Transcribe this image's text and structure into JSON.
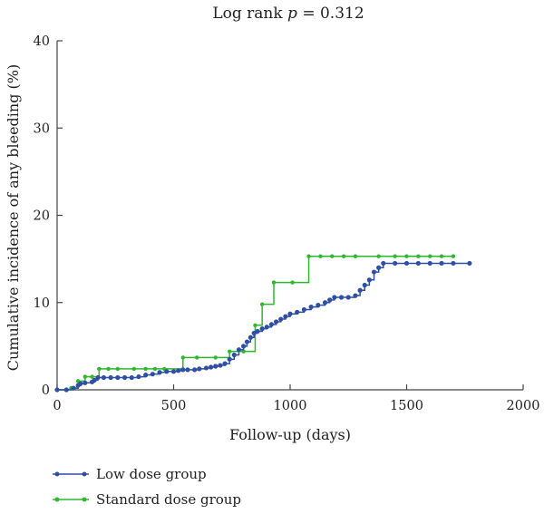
{
  "chart_data": {
    "type": "line",
    "title": "Log rank p = 0.312",
    "title_parts": {
      "prefix": "Log rank ",
      "p": "p",
      "suffix": " = 0.312"
    },
    "xlabel": "Follow-up (days)",
    "ylabel": "Cumulative incidence of any bleeding (%)",
    "xlim": [
      0,
      2000
    ],
    "ylim": [
      0,
      40
    ],
    "xticks": [
      0,
      500,
      1000,
      1500,
      2000
    ],
    "yticks": [
      0,
      10,
      20,
      30,
      40
    ],
    "xtick_labels": [
      "0",
      "500",
      "1000",
      "1500",
      "2000"
    ],
    "ytick_labels": [
      "0",
      "10",
      "20",
      "30",
      "40"
    ],
    "grid": false,
    "legend_position": "bottom-left",
    "series": [
      {
        "name": "Low dose group",
        "color": "#2e4fa3",
        "step": true,
        "points": [
          [
            0,
            0
          ],
          [
            40,
            0
          ],
          [
            70,
            0.2
          ],
          [
            90,
            0.5
          ],
          [
            100,
            0.7
          ],
          [
            120,
            0.8
          ],
          [
            150,
            0.9
          ],
          [
            160,
            1.1
          ],
          [
            175,
            1.4
          ],
          [
            200,
            1.4
          ],
          [
            230,
            1.4
          ],
          [
            260,
            1.4
          ],
          [
            290,
            1.4
          ],
          [
            320,
            1.4
          ],
          [
            350,
            1.5
          ],
          [
            380,
            1.7
          ],
          [
            410,
            1.8
          ],
          [
            440,
            2.0
          ],
          [
            470,
            2.1
          ],
          [
            500,
            2.1
          ],
          [
            520,
            2.2
          ],
          [
            540,
            2.3
          ],
          [
            560,
            2.3
          ],
          [
            590,
            2.3
          ],
          [
            610,
            2.4
          ],
          [
            640,
            2.5
          ],
          [
            660,
            2.6
          ],
          [
            680,
            2.7
          ],
          [
            700,
            2.8
          ],
          [
            720,
            3.0
          ],
          [
            740,
            3.5
          ],
          [
            760,
            4.0
          ],
          [
            780,
            4.6
          ],
          [
            800,
            5.0
          ],
          [
            815,
            5.5
          ],
          [
            830,
            6.0
          ],
          [
            845,
            6.5
          ],
          [
            860,
            6.7
          ],
          [
            880,
            7.0
          ],
          [
            900,
            7.2
          ],
          [
            920,
            7.5
          ],
          [
            940,
            7.8
          ],
          [
            960,
            8.1
          ],
          [
            980,
            8.4
          ],
          [
            1000,
            8.7
          ],
          [
            1030,
            8.9
          ],
          [
            1060,
            9.2
          ],
          [
            1090,
            9.5
          ],
          [
            1120,
            9.7
          ],
          [
            1150,
            10.0
          ],
          [
            1170,
            10.3
          ],
          [
            1190,
            10.6
          ],
          [
            1220,
            10.6
          ],
          [
            1250,
            10.6
          ],
          [
            1280,
            10.8
          ],
          [
            1300,
            11.4
          ],
          [
            1320,
            12.0
          ],
          [
            1340,
            12.6
          ],
          [
            1360,
            13.5
          ],
          [
            1380,
            14.0
          ],
          [
            1400,
            14.5
          ],
          [
            1450,
            14.5
          ],
          [
            1500,
            14.5
          ],
          [
            1550,
            14.5
          ],
          [
            1600,
            14.5
          ],
          [
            1650,
            14.5
          ],
          [
            1700,
            14.5
          ],
          [
            1770,
            14.5
          ]
        ]
      },
      {
        "name": "Standard dose group",
        "color": "#2eb82e",
        "step": true,
        "points": [
          [
            0,
            0
          ],
          [
            60,
            0.2
          ],
          [
            90,
            1.0
          ],
          [
            120,
            1.5
          ],
          [
            150,
            1.5
          ],
          [
            180,
            2.4
          ],
          [
            220,
            2.4
          ],
          [
            260,
            2.4
          ],
          [
            330,
            2.4
          ],
          [
            380,
            2.4
          ],
          [
            420,
            2.4
          ],
          [
            460,
            2.4
          ],
          [
            540,
            3.7
          ],
          [
            600,
            3.7
          ],
          [
            680,
            3.7
          ],
          [
            740,
            4.4
          ],
          [
            800,
            4.4
          ],
          [
            850,
            7.4
          ],
          [
            880,
            9.8
          ],
          [
            930,
            12.3
          ],
          [
            1010,
            12.3
          ],
          [
            1080,
            15.3
          ],
          [
            1130,
            15.3
          ],
          [
            1180,
            15.3
          ],
          [
            1230,
            15.3
          ],
          [
            1280,
            15.3
          ],
          [
            1380,
            15.3
          ],
          [
            1450,
            15.3
          ],
          [
            1500,
            15.3
          ],
          [
            1550,
            15.3
          ],
          [
            1600,
            15.3
          ],
          [
            1650,
            15.3
          ],
          [
            1700,
            15.3
          ]
        ]
      }
    ]
  }
}
